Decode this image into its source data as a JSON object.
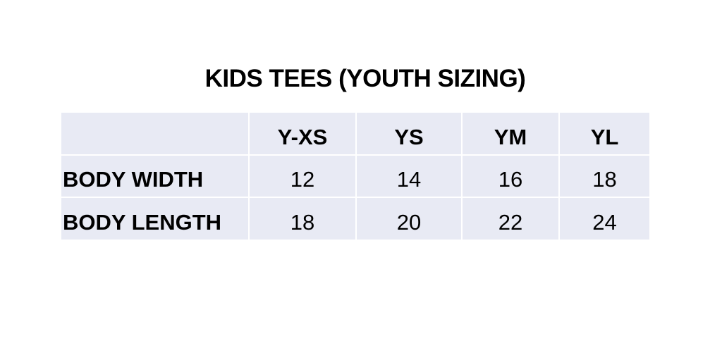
{
  "title": "KIDS TEES (YOUTH SIZING)",
  "table": {
    "columns": [
      "",
      "Y-XS",
      "YS",
      "YM",
      "YL"
    ],
    "rows": [
      {
        "label": "BODY WIDTH",
        "values": [
          "12",
          "14",
          "16",
          "18"
        ]
      },
      {
        "label": "BODY LENGTH",
        "values": [
          "18",
          "20",
          "22",
          "24"
        ]
      }
    ]
  },
  "colors": {
    "cell_background": "#e8eaf4",
    "grid_lines": "#ffffff"
  }
}
